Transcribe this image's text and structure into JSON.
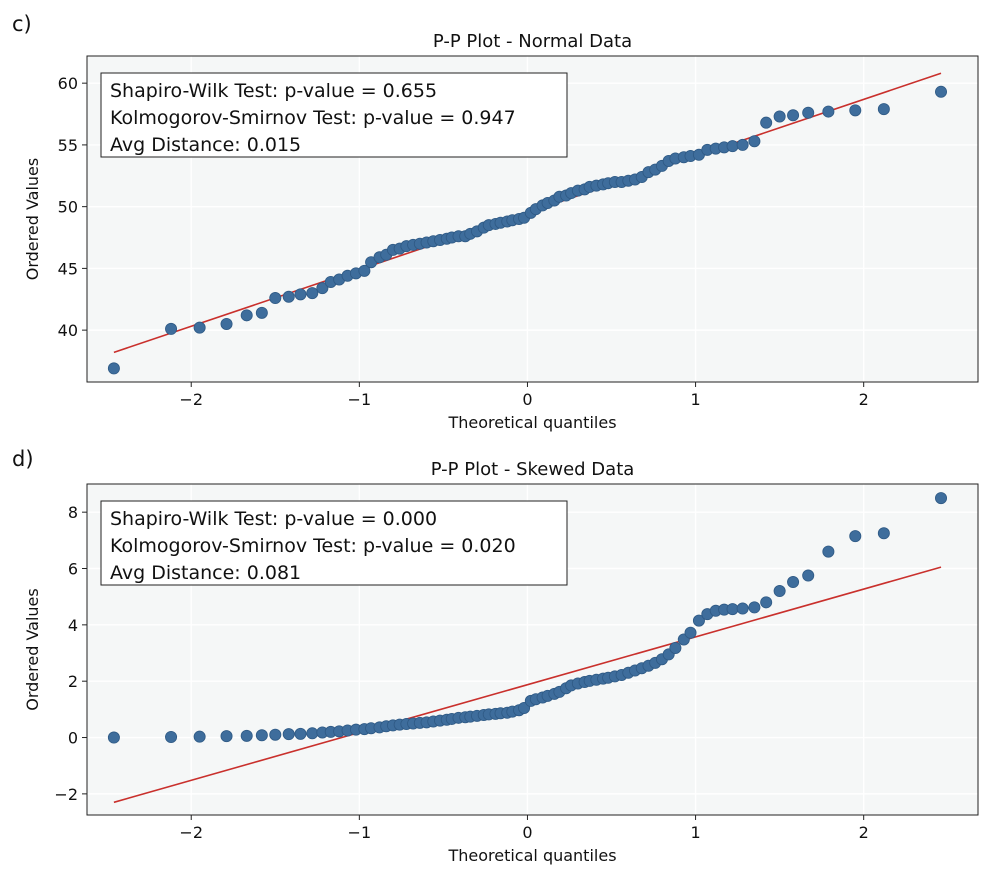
{
  "chart_data": [
    {
      "type": "scatter",
      "panel_label": "c)",
      "title": "P-P Plot - Normal Data",
      "xlabel": "Theoretical quantiles",
      "ylabel": "Ordered Values",
      "xlim": [
        -2.62,
        2.68
      ],
      "ylim": [
        35.8,
        62.2
      ],
      "xticks": [
        -2,
        -1,
        0,
        1,
        2
      ],
      "xtick_labels": [
        "−2",
        "−1",
        "0",
        "1",
        "2"
      ],
      "yticks": [
        40,
        45,
        50,
        55,
        60
      ],
      "ytick_labels": [
        "40",
        "45",
        "50",
        "55",
        "60"
      ],
      "annotation": [
        "Shapiro-Wilk Test: p-value = 0.655",
        "Kolmogorov-Smirnov Test: p-value = 0.947",
        "Avg Distance: 0.015"
      ],
      "fit_line": {
        "x": [
          -2.46,
          2.46
        ],
        "y": [
          38.2,
          60.8
        ]
      },
      "points": [
        [
          -2.46,
          36.9
        ],
        [
          -2.12,
          40.1
        ],
        [
          -1.95,
          40.2
        ],
        [
          -1.79,
          40.5
        ],
        [
          -1.67,
          41.2
        ],
        [
          -1.58,
          41.4
        ],
        [
          -1.5,
          42.6
        ],
        [
          -1.42,
          42.7
        ],
        [
          -1.35,
          42.9
        ],
        [
          -1.28,
          43.0
        ],
        [
          -1.22,
          43.4
        ],
        [
          -1.17,
          43.9
        ],
        [
          -1.12,
          44.1
        ],
        [
          -1.07,
          44.4
        ],
        [
          -1.02,
          44.6
        ],
        [
          -0.97,
          44.8
        ],
        [
          -0.93,
          45.5
        ],
        [
          -0.88,
          45.9
        ],
        [
          -0.84,
          46.1
        ],
        [
          -0.8,
          46.5
        ],
        [
          -0.76,
          46.6
        ],
        [
          -0.72,
          46.8
        ],
        [
          -0.68,
          46.9
        ],
        [
          -0.64,
          47.0
        ],
        [
          -0.6,
          47.1
        ],
        [
          -0.56,
          47.2
        ],
        [
          -0.52,
          47.3
        ],
        [
          -0.48,
          47.4
        ],
        [
          -0.45,
          47.5
        ],
        [
          -0.41,
          47.6
        ],
        [
          -0.37,
          47.6
        ],
        [
          -0.34,
          47.8
        ],
        [
          -0.3,
          48.0
        ],
        [
          -0.26,
          48.3
        ],
        [
          -0.23,
          48.5
        ],
        [
          -0.19,
          48.6
        ],
        [
          -0.16,
          48.7
        ],
        [
          -0.12,
          48.8
        ],
        [
          -0.09,
          48.9
        ],
        [
          -0.05,
          49.0
        ],
        [
          -0.02,
          49.1
        ],
        [
          0.02,
          49.5
        ],
        [
          0.05,
          49.8
        ],
        [
          0.09,
          50.1
        ],
        [
          0.12,
          50.3
        ],
        [
          0.16,
          50.5
        ],
        [
          0.19,
          50.8
        ],
        [
          0.23,
          50.9
        ],
        [
          0.26,
          51.1
        ],
        [
          0.3,
          51.3
        ],
        [
          0.34,
          51.4
        ],
        [
          0.37,
          51.6
        ],
        [
          0.41,
          51.7
        ],
        [
          0.45,
          51.8
        ],
        [
          0.48,
          51.9
        ],
        [
          0.52,
          52.0
        ],
        [
          0.56,
          52.0
        ],
        [
          0.6,
          52.1
        ],
        [
          0.64,
          52.2
        ],
        [
          0.68,
          52.4
        ],
        [
          0.72,
          52.8
        ],
        [
          0.76,
          53.0
        ],
        [
          0.8,
          53.3
        ],
        [
          0.84,
          53.7
        ],
        [
          0.88,
          53.9
        ],
        [
          0.93,
          54.0
        ],
        [
          0.97,
          54.1
        ],
        [
          1.02,
          54.2
        ],
        [
          1.07,
          54.6
        ],
        [
          1.12,
          54.7
        ],
        [
          1.17,
          54.8
        ],
        [
          1.22,
          54.9
        ],
        [
          1.28,
          55.0
        ],
        [
          1.35,
          55.3
        ],
        [
          1.42,
          56.8
        ],
        [
          1.5,
          57.3
        ],
        [
          1.58,
          57.4
        ],
        [
          1.67,
          57.6
        ],
        [
          1.79,
          57.7
        ],
        [
          1.95,
          57.8
        ],
        [
          2.12,
          57.9
        ],
        [
          2.46,
          59.3
        ]
      ]
    },
    {
      "type": "scatter",
      "panel_label": "d)",
      "title": "P-P Plot - Skewed Data",
      "xlabel": "Theoretical quantiles",
      "ylabel": "Ordered Values",
      "xlim": [
        -2.62,
        2.68
      ],
      "ylim": [
        -2.75,
        9.0
      ],
      "xticks": [
        -2,
        -1,
        0,
        1,
        2
      ],
      "xtick_labels": [
        "−2",
        "−1",
        "0",
        "1",
        "2"
      ],
      "yticks": [
        -2,
        0,
        2,
        4,
        6,
        8
      ],
      "ytick_labels": [
        "−2",
        "0",
        "2",
        "4",
        "6",
        "8"
      ],
      "annotation": [
        "Shapiro-Wilk Test: p-value = 0.000",
        "Kolmogorov-Smirnov Test: p-value = 0.020",
        "Avg Distance: 0.081"
      ],
      "fit_line": {
        "x": [
          -2.46,
          2.46
        ],
        "y": [
          -2.3,
          6.05
        ]
      },
      "points": [
        [
          -2.46,
          0.0
        ],
        [
          -2.12,
          0.02
        ],
        [
          -1.95,
          0.03
        ],
        [
          -1.79,
          0.05
        ],
        [
          -1.67,
          0.06
        ],
        [
          -1.58,
          0.08
        ],
        [
          -1.5,
          0.1
        ],
        [
          -1.42,
          0.12
        ],
        [
          -1.35,
          0.13
        ],
        [
          -1.28,
          0.15
        ],
        [
          -1.22,
          0.18
        ],
        [
          -1.17,
          0.2
        ],
        [
          -1.12,
          0.22
        ],
        [
          -1.07,
          0.25
        ],
        [
          -1.02,
          0.28
        ],
        [
          -0.97,
          0.3
        ],
        [
          -0.93,
          0.33
        ],
        [
          -0.88,
          0.36
        ],
        [
          -0.84,
          0.4
        ],
        [
          -0.8,
          0.43
        ],
        [
          -0.76,
          0.46
        ],
        [
          -0.72,
          0.48
        ],
        [
          -0.68,
          0.5
        ],
        [
          -0.64,
          0.52
        ],
        [
          -0.6,
          0.54
        ],
        [
          -0.56,
          0.57
        ],
        [
          -0.52,
          0.6
        ],
        [
          -0.48,
          0.63
        ],
        [
          -0.45,
          0.66
        ],
        [
          -0.41,
          0.7
        ],
        [
          -0.37,
          0.72
        ],
        [
          -0.34,
          0.74
        ],
        [
          -0.3,
          0.77
        ],
        [
          -0.26,
          0.8
        ],
        [
          -0.23,
          0.82
        ],
        [
          -0.19,
          0.84
        ],
        [
          -0.16,
          0.86
        ],
        [
          -0.12,
          0.88
        ],
        [
          -0.09,
          0.92
        ],
        [
          -0.05,
          0.97
        ],
        [
          -0.02,
          1.05
        ],
        [
          0.02,
          1.3
        ],
        [
          0.05,
          1.36
        ],
        [
          0.09,
          1.42
        ],
        [
          0.12,
          1.48
        ],
        [
          0.16,
          1.55
        ],
        [
          0.19,
          1.62
        ],
        [
          0.23,
          1.75
        ],
        [
          0.26,
          1.85
        ],
        [
          0.3,
          1.92
        ],
        [
          0.34,
          1.97
        ],
        [
          0.37,
          2.01
        ],
        [
          0.41,
          2.05
        ],
        [
          0.45,
          2.09
        ],
        [
          0.48,
          2.12
        ],
        [
          0.52,
          2.17
        ],
        [
          0.56,
          2.22
        ],
        [
          0.6,
          2.3
        ],
        [
          0.64,
          2.38
        ],
        [
          0.68,
          2.46
        ],
        [
          0.72,
          2.55
        ],
        [
          0.76,
          2.65
        ],
        [
          0.8,
          2.78
        ],
        [
          0.84,
          2.95
        ],
        [
          0.88,
          3.18
        ],
        [
          0.93,
          3.48
        ],
        [
          0.97,
          3.72
        ],
        [
          1.02,
          4.15
        ],
        [
          1.07,
          4.38
        ],
        [
          1.12,
          4.5
        ],
        [
          1.17,
          4.54
        ],
        [
          1.22,
          4.56
        ],
        [
          1.28,
          4.58
        ],
        [
          1.35,
          4.62
        ],
        [
          1.42,
          4.8
        ],
        [
          1.5,
          5.2
        ],
        [
          1.58,
          5.52
        ],
        [
          1.67,
          5.75
        ],
        [
          1.79,
          6.6
        ],
        [
          1.95,
          7.15
        ],
        [
          2.12,
          7.25
        ],
        [
          2.46,
          8.5
        ]
      ]
    }
  ]
}
